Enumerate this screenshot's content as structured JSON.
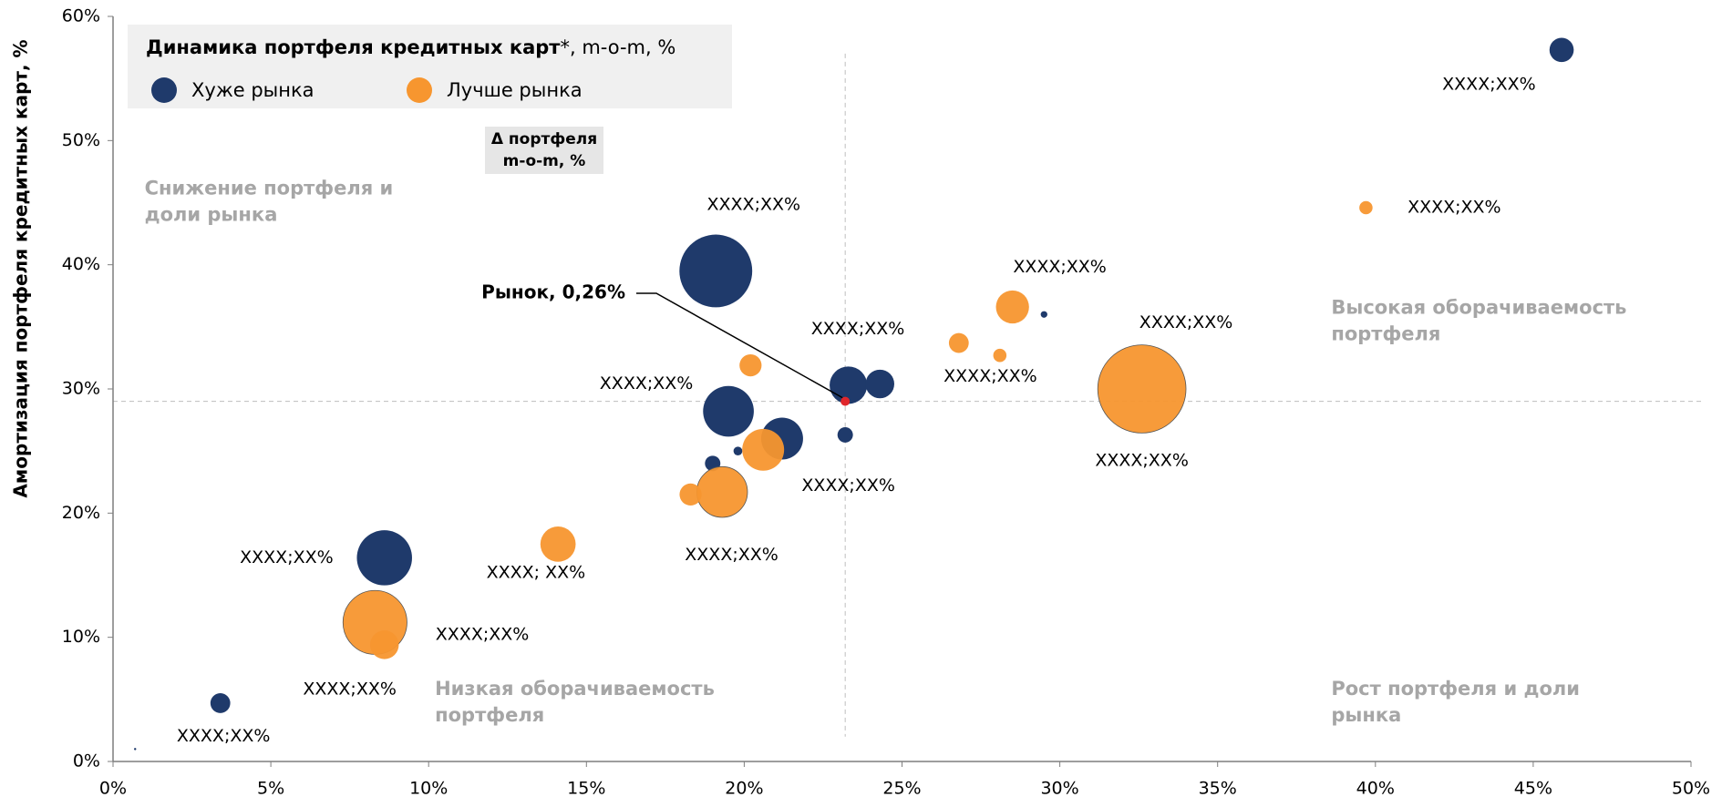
{
  "chart_data": {
    "type": "bubble",
    "title": "Динамика портфеля кредитных карт",
    "title_suffix": "*, m-o-m, %",
    "ylabel": "Амортизация портфеля кредитных карт, %",
    "size_legend": [
      "Δ портфеля",
      "m-o-m, %"
    ],
    "xlim": [
      0,
      50
    ],
    "ylim": [
      0,
      60
    ],
    "xticks": [
      {
        "value": 0,
        "label": "0%"
      },
      {
        "value": 5,
        "label": "5%"
      },
      {
        "value": 10,
        "label": "10%"
      },
      {
        "value": 15,
        "label": "15%"
      },
      {
        "value": 20,
        "label": "20%"
      },
      {
        "value": 25,
        "label": "25%"
      },
      {
        "value": 30,
        "label": "30%"
      },
      {
        "value": 35,
        "label": "35%"
      },
      {
        "value": 40,
        "label": "40%"
      },
      {
        "value": 45,
        "label": "45%"
      },
      {
        "value": 50,
        "label": "50%"
      }
    ],
    "yticks": [
      {
        "value": 0,
        "label": "0%"
      },
      {
        "value": 10,
        "label": "10%"
      },
      {
        "value": 20,
        "label": "20%"
      },
      {
        "value": 30,
        "label": "30%"
      },
      {
        "value": 40,
        "label": "40%"
      },
      {
        "value": 50,
        "label": "50%"
      },
      {
        "value": 60,
        "label": "60%"
      }
    ],
    "legend": "top-left",
    "series": [
      {
        "name": "Хуже рынка",
        "color": "#1f3a6b",
        "x": [
          19.1,
          45.9,
          8.6,
          19.5,
          21.2,
          23.3,
          24.3,
          3.4,
          23.2,
          19.0,
          19.8,
          29.5,
          0.7
        ],
        "y": [
          39.5,
          57.3,
          16.4,
          28.2,
          26.0,
          30.3,
          30.4,
          4.7,
          26.3,
          24.0,
          25.0,
          36.0,
          1.0
        ],
        "sizes": [
          33,
          11,
          25,
          23,
          19,
          17,
          13,
          9,
          7,
          7,
          4,
          3,
          1
        ]
      },
      {
        "name": "Лучше рынка",
        "color": "#f7962f",
        "x": [
          32.6,
          8.3,
          19.3,
          20.6,
          14.1,
          28.5,
          8.6,
          20.2,
          18.3,
          26.8,
          39.7,
          28.1
        ],
        "y": [
          30.0,
          11.2,
          21.7,
          25.1,
          17.5,
          36.6,
          9.4,
          31.9,
          21.5,
          33.7,
          44.6,
          32.7
        ],
        "sizes": [
          40,
          29,
          23,
          19,
          16,
          15,
          13,
          10,
          10,
          9,
          6,
          6
        ]
      }
    ],
    "market": {
      "x": 23.2,
      "y": 29.0,
      "color": "#e0262b",
      "label": "Рынок, 0,26%"
    },
    "reference_lines": {
      "x": 23.2,
      "y": 29.0
    },
    "annotations": [
      {
        "text": "XXXX;XX%",
        "x": 43.6,
        "y": 54.5
      },
      {
        "text": "XXXX;XX%",
        "x": 42.5,
        "y": 44.6
      },
      {
        "text": "XXXX;XX%",
        "x": 20.3,
        "y": 44.8
      },
      {
        "text": "XXXX;XX%",
        "x": 30.0,
        "y": 39.8
      },
      {
        "text": "XXXX;XX%",
        "x": 34.0,
        "y": 35.3
      },
      {
        "text": "XXXX;XX%",
        "x": 23.6,
        "y": 34.8
      },
      {
        "text": "XXXX;XX%",
        "x": 27.8,
        "y": 31.0
      },
      {
        "text": "XXXX;XX%",
        "x": 16.9,
        "y": 30.4
      },
      {
        "text": "XXXX;XX%",
        "x": 32.6,
        "y": 24.2
      },
      {
        "text": "XXXX;XX%",
        "x": 23.3,
        "y": 22.2
      },
      {
        "text": "XXXX;XX%",
        "x": 19.6,
        "y": 16.6
      },
      {
        "text": "XXXX;XX%",
        "x": 5.5,
        "y": 16.4
      },
      {
        "text": "XXXX; XX%",
        "x": 13.4,
        "y": 15.2
      },
      {
        "text": "XXXX;XX%",
        "x": 11.7,
        "y": 10.2
      },
      {
        "text": "XXXX;XX%",
        "x": 7.5,
        "y": 5.8
      },
      {
        "text": "XXXX;XX%",
        "x": 3.5,
        "y": 2.0
      }
    ],
    "quadrant_labels": [
      {
        "lines": [
          "Снижение портфеля и",
          "доли рынка"
        ],
        "x": 1.0,
        "y": 46.1
      },
      {
        "lines": [
          "Высокая оборачиваемость",
          "портфеля"
        ],
        "x": 38.6,
        "y": 36.5
      },
      {
        "lines": [
          "Низкая оборачиваемость",
          "портфеля"
        ],
        "x": 10.2,
        "y": 5.8
      },
      {
        "lines": [
          "Рост портфеля и доли",
          "рынка"
        ],
        "x": 38.6,
        "y": 5.8
      }
    ]
  }
}
